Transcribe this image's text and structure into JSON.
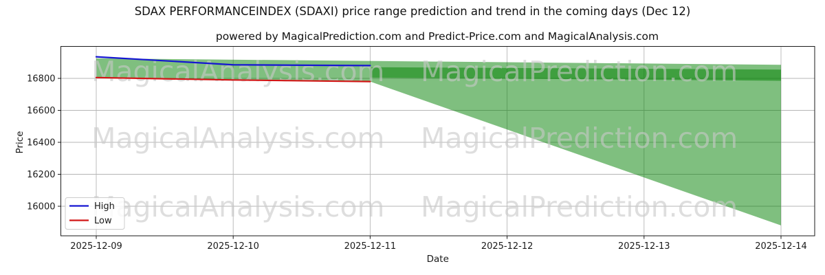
{
  "title": "SDAX PERFORMANCEINDEX (SDAXI) price range prediction and trend in the coming days (Dec 12)",
  "subtitle": "powered by MagicalPrediction.com and Predict-Price.com and MagicalAnalysis.com",
  "watermarks": {
    "left_text": "MagicalAnalysis.com",
    "right_text": "MagicalPrediction.com",
    "color": "#c9c9c9",
    "opacity": 0.6
  },
  "chart_data": {
    "type": "area",
    "x": [
      "2025-12-09",
      "2025-12-10",
      "2025-12-11",
      "2025-12-12",
      "2025-12-13",
      "2025-12-14"
    ],
    "xlabel": "Date",
    "ylabel": "Price",
    "yticks": [
      16000,
      16200,
      16400,
      16600,
      16800
    ],
    "ylim": [
      15815,
      17000
    ],
    "grid": true,
    "series": [
      {
        "name": "High",
        "color": "#1515d2",
        "x_index": [
          0,
          1,
          2
        ],
        "values": [
          16935,
          16885,
          16880
        ]
      },
      {
        "name": "Low",
        "color": "#d21515",
        "x_index": [
          0,
          1,
          2
        ],
        "values": [
          16805,
          16790,
          16780
        ]
      }
    ],
    "bands": [
      {
        "name": "price-range-fan-band",
        "color": "#008000",
        "opacity": 0.5,
        "top_x": [
          0,
          5
        ],
        "top_values": [
          16925,
          16885
        ],
        "bottom_x": [
          0,
          1,
          2,
          5
        ],
        "bottom_values": [
          16805,
          16790,
          16780,
          15880
        ]
      },
      {
        "name": "forecast-core-band",
        "color": "#008000",
        "opacity": 0.5,
        "top_x": [
          2,
          5
        ],
        "top_values": [
          16870,
          16855
        ],
        "bottom_x": [
          2,
          5
        ],
        "bottom_values": [
          16805,
          16785
        ]
      }
    ],
    "legend": {
      "position": "lower-left",
      "entries": [
        {
          "label": "High",
          "color": "#1515d2"
        },
        {
          "label": "Low",
          "color": "#d21515"
        }
      ]
    }
  }
}
